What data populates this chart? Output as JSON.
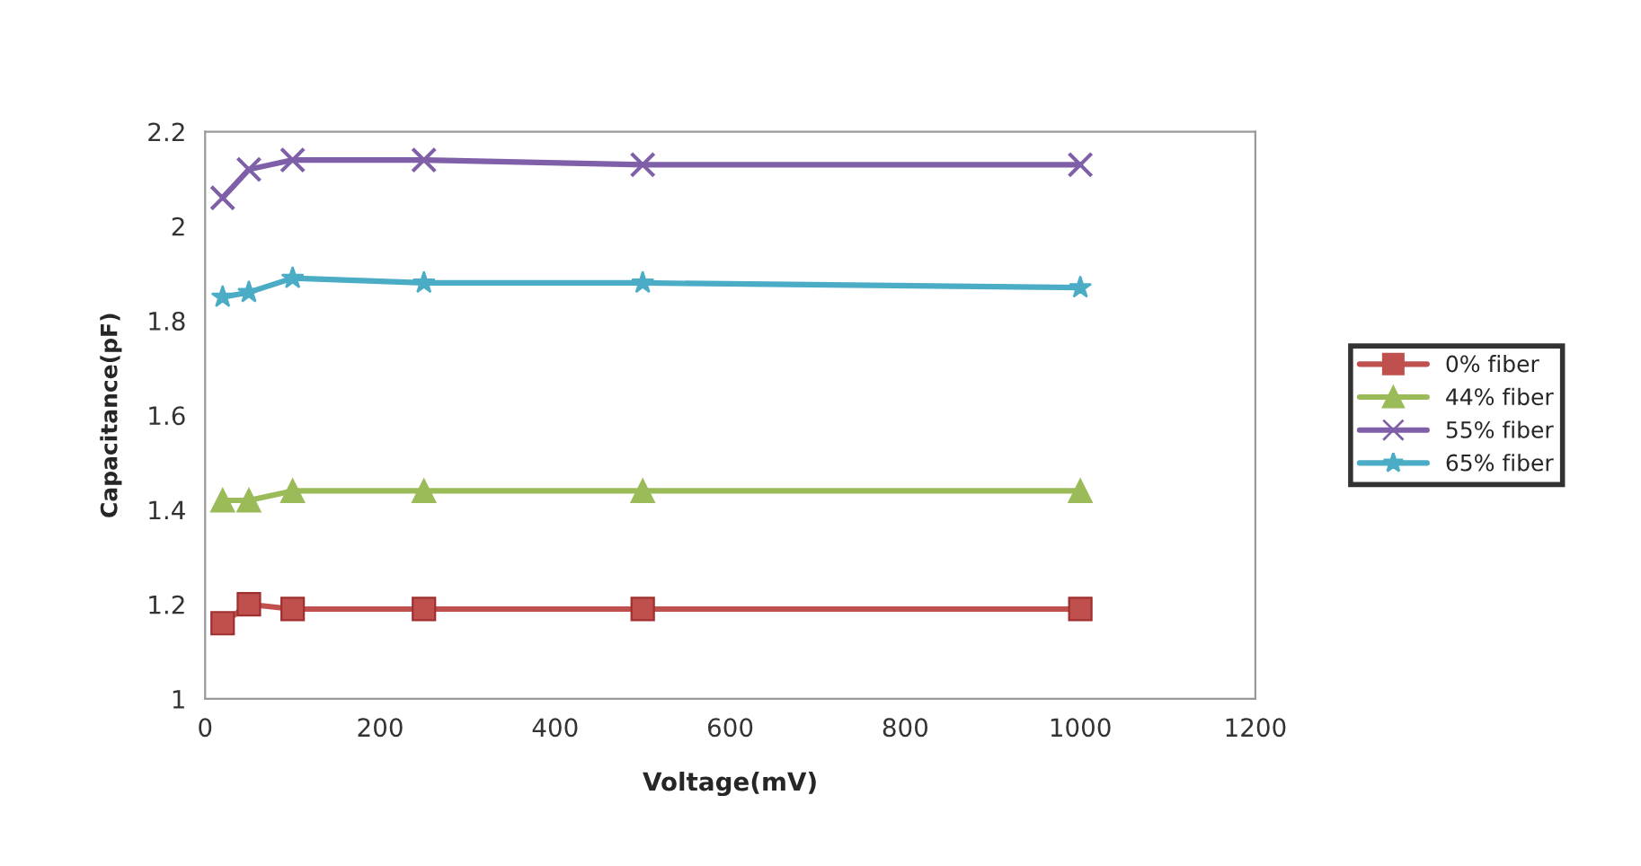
{
  "chart_data": {
    "type": "line",
    "xlabel": "Voltage(mV)",
    "ylabel": "Capacitance(pF)",
    "x": [
      20,
      50,
      100,
      250,
      500,
      1000
    ],
    "series": [
      {
        "name": "0% fiber",
        "color": "#c0504d",
        "marker": "square",
        "values": [
          1.16,
          1.2,
          1.19,
          1.19,
          1.19,
          1.19
        ]
      },
      {
        "name": "44% fiber",
        "color": "#9bbb59",
        "marker": "triangle",
        "values": [
          1.42,
          1.42,
          1.44,
          1.44,
          1.44,
          1.44
        ]
      },
      {
        "name": "55% fiber",
        "color": "#7f5fa8",
        "marker": "cross",
        "values": [
          2.06,
          2.12,
          2.14,
          2.14,
          2.13,
          2.13
        ]
      },
      {
        "name": "65% fiber",
        "color": "#4bacc6",
        "marker": "star",
        "values": [
          1.85,
          1.86,
          1.89,
          1.88,
          1.88,
          1.87
        ]
      }
    ],
    "xlim": [
      0,
      1200
    ],
    "xticks": [
      0,
      200,
      400,
      600,
      800,
      1000,
      1200
    ],
    "ylim": [
      1,
      2.2
    ],
    "yticks": [
      {
        "value": 1,
        "label": "1"
      },
      1.2,
      1.4,
      1.6,
      1.8,
      {
        "value": 2,
        "label": "2"
      },
      2.2
    ],
    "grid": false,
    "legend": "right",
    "line_style": "solid"
  }
}
